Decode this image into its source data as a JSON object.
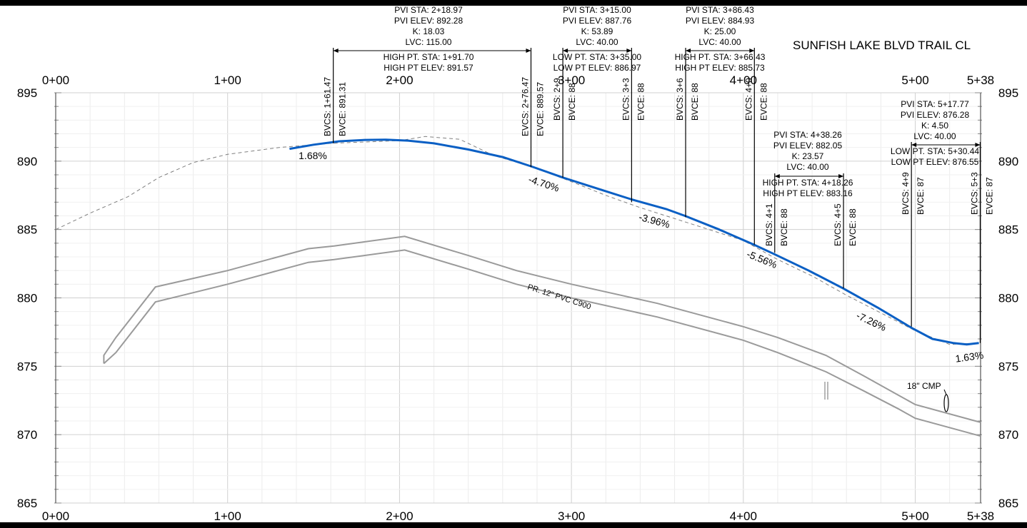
{
  "title": "SUNFISH LAKE BLVD TRAIL CL",
  "colors": {
    "background": "#ffffff",
    "frame": "#000000",
    "grid": "#e6e6e6",
    "text": "#000000",
    "profile": "#0a5fc4",
    "existing_ground": "#808080",
    "pipe": "#9a9a9a"
  },
  "axes": {
    "station_range": [
      0,
      538
    ],
    "elevation_range": [
      865,
      895
    ],
    "top_station_labels": [
      "0+00",
      "1+00",
      "2+00",
      "3+00",
      "4+00",
      "5+00",
      "5+38"
    ],
    "bottom_station_labels": [
      "0+00",
      "1+00",
      "2+00",
      "3+00",
      "4+00",
      "5+00",
      "5+38"
    ],
    "elevation_labels": [
      "895",
      "890",
      "885",
      "880",
      "875",
      "870",
      "865"
    ]
  },
  "vertical_curves": [
    {
      "pvi_lines": [
        "PVI STA: 2+18.97",
        "PVI ELEV: 892.28",
        "K: 18.03",
        "LVC: 115.00",
        "HIGH PT. STA: 1+91.70",
        "HIGH PT ELEV: 891.57"
      ],
      "bvcs": "BVCS: 1+61.47",
      "bvce": "BVCE: 891.31",
      "evcs": "EVCS: 2+76.47",
      "evce": "EVCE: 889.57"
    },
    {
      "pvi_lines": [
        "PVI STA: 3+15.00",
        "PVI ELEV: 887.76",
        "K: 53.89",
        "LVC: 40.00",
        "LOW PT. STA: 3+35.00",
        "LOW PT ELEV: 886.97"
      ],
      "bvcs": "BVCS: 2+9",
      "bvce": "BVCE: 88",
      "evcs": "EVCS: 3+3",
      "evce": "EVCE: 88"
    },
    {
      "pvi_lines": [
        "PVI STA: 3+86.43",
        "PVI ELEV: 884.93",
        "K: 25.00",
        "LVC: 40.00",
        "HIGH PT. STA: 3+66.43",
        "HIGH PT ELEV: 885.73"
      ],
      "bvcs": "BVCS: 3+6",
      "bvce": "BVCE: 88",
      "evcs": "EVCS: 4+0",
      "evce": "EVCE: 88"
    },
    {
      "pvi_lines": [
        "PVI STA: 4+38.26",
        "PVI ELEV: 882.05",
        "K: 23.57",
        "LVC: 40.00",
        "HIGH PT. STA: 4+18.26",
        "HIGH PT ELEV: 883.16"
      ],
      "bvcs": "BVCS: 4+1",
      "bvce": "BVCE: 88",
      "evcs": "EVCS: 4+5",
      "evce": "EVCE: 88"
    },
    {
      "pvi_lines": [
        "PVI STA: 5+17.77",
        "PVI ELEV: 876.28",
        "K: 4.50",
        "LVC: 40.00",
        "LOW PT. STA: 5+30.44",
        "LOW PT ELEV: 876.55"
      ],
      "bvcs": "BVCS: 4+9",
      "bvce": "BVCE: 87",
      "evcs": "EVCS: 5+3",
      "evce": "EVCE: 87"
    }
  ],
  "grades": [
    "1.68%",
    "-4.70%",
    "-3.96%",
    "-5.56%",
    "-7.26%",
    "1.63%"
  ],
  "pipe_label": "PR. 12\" PVC C900",
  "culvert_label": "18\" CMP",
  "profile_points": [
    [
      136,
      890.9
    ],
    [
      150,
      891.2
    ],
    [
      165,
      891.45
    ],
    [
      180,
      891.55
    ],
    [
      192,
      891.57
    ],
    [
      205,
      891.5
    ],
    [
      220,
      891.3
    ],
    [
      240,
      890.85
    ],
    [
      260,
      890.3
    ],
    [
      277,
      889.6
    ],
    [
      295,
      888.8
    ],
    [
      315,
      888.0
    ],
    [
      335,
      887.2
    ],
    [
      355,
      886.5
    ],
    [
      366,
      886.0
    ],
    [
      386,
      885.0
    ],
    [
      406,
      883.9
    ],
    [
      418,
      883.2
    ],
    [
      438,
      882.0
    ],
    [
      458,
      880.7
    ],
    [
      478,
      879.3
    ],
    [
      498,
      877.8
    ],
    [
      510,
      877.0
    ],
    [
      522,
      876.7
    ],
    [
      530,
      876.6
    ],
    [
      537,
      876.7
    ]
  ],
  "existing_ground_points": [
    [
      0,
      885.0
    ],
    [
      20,
      886.2
    ],
    [
      42,
      887.4
    ],
    [
      60,
      888.8
    ],
    [
      80,
      889.9
    ],
    [
      100,
      890.5
    ],
    [
      130,
      891.0
    ],
    [
      160,
      891.3
    ],
    [
      200,
      891.5
    ],
    [
      215,
      891.8
    ],
    [
      235,
      891.6
    ],
    [
      255,
      890.4
    ],
    [
      277,
      889.6
    ],
    [
      300,
      888.5
    ],
    [
      320,
      887.5
    ],
    [
      340,
      886.6
    ],
    [
      360,
      885.8
    ],
    [
      380,
      885.0
    ],
    [
      400,
      884.2
    ],
    [
      420,
      882.8
    ],
    [
      440,
      881.6
    ],
    [
      460,
      880.2
    ],
    [
      480,
      878.9
    ],
    [
      500,
      877.6
    ],
    [
      520,
      876.6
    ],
    [
      537,
      876.7
    ]
  ],
  "pipe_top_points": [
    [
      28,
      875.2
    ],
    [
      28,
      875.8
    ],
    [
      35,
      877.1
    ],
    [
      58,
      880.8
    ],
    [
      100,
      882.0
    ],
    [
      147,
      883.6
    ],
    [
      162,
      883.8
    ],
    [
      203,
      884.5
    ],
    [
      240,
      883.1
    ],
    [
      268,
      882.0
    ],
    [
      300,
      881.0
    ],
    [
      350,
      879.6
    ],
    [
      400,
      877.9
    ],
    [
      420,
      877.1
    ],
    [
      448,
      875.8
    ],
    [
      470,
      874.3
    ],
    [
      490,
      872.9
    ],
    [
      500,
      872.2
    ],
    [
      535,
      871.0
    ],
    [
      538,
      870.9
    ]
  ],
  "pipe_bottom_points": [
    [
      28,
      875.2
    ],
    [
      35,
      876.0
    ],
    [
      58,
      879.7
    ],
    [
      100,
      881.0
    ],
    [
      147,
      882.6
    ],
    [
      162,
      882.8
    ],
    [
      203,
      883.5
    ],
    [
      240,
      882.1
    ],
    [
      268,
      881.0
    ],
    [
      300,
      880.0
    ],
    [
      350,
      878.6
    ],
    [
      400,
      876.9
    ],
    [
      420,
      876.0
    ],
    [
      448,
      874.6
    ],
    [
      470,
      873.2
    ],
    [
      490,
      871.9
    ],
    [
      500,
      871.2
    ],
    [
      535,
      870.0
    ],
    [
      538,
      869.9
    ]
  ]
}
